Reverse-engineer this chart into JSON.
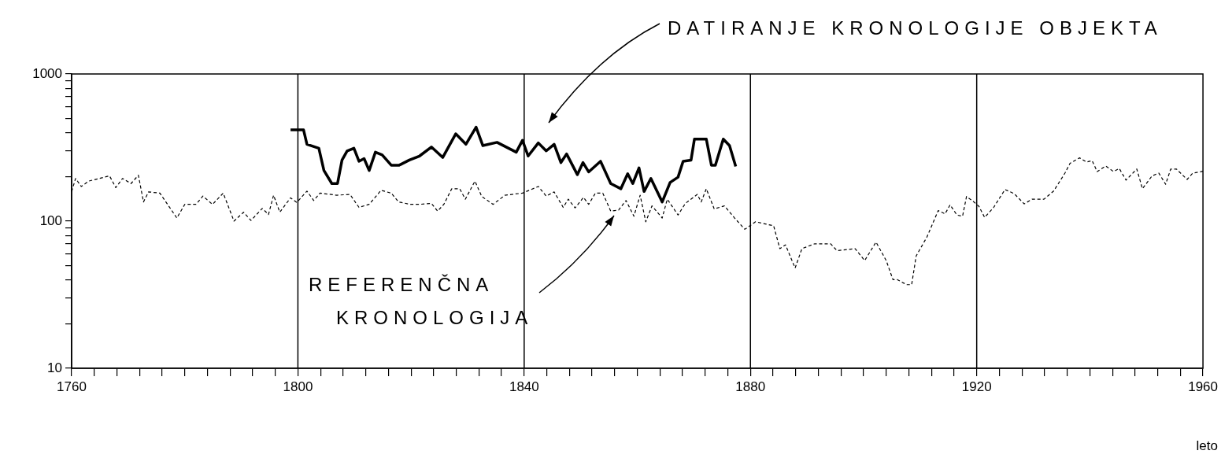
{
  "chart_data": {
    "type": "line",
    "xlabel": "leto",
    "log": true,
    "xlim": [
      1760,
      1960
    ],
    "ylim": [
      10,
      1000
    ],
    "xticks": [
      1760,
      {
        "value": 1764,
        "label": null
      },
      {
        "value": 1768,
        "label": null
      },
      {
        "value": 1772,
        "label": null
      },
      {
        "value": 1776,
        "label": null
      },
      {
        "value": 1780,
        "label": null
      },
      {
        "value": 1784,
        "label": null
      },
      {
        "value": 1788,
        "label": null
      },
      {
        "value": 1792,
        "label": null
      },
      {
        "value": 1796,
        "label": null
      },
      1800,
      {
        "value": 1804,
        "label": null
      },
      {
        "value": 1808,
        "label": null
      },
      {
        "value": 1812,
        "label": null
      },
      {
        "value": 1816,
        "label": null
      },
      {
        "value": 1820,
        "label": null
      },
      {
        "value": 1824,
        "label": null
      },
      {
        "value": 1828,
        "label": null
      },
      {
        "value": 1832,
        "label": null
      },
      {
        "value": 1836,
        "label": null
      },
      1840,
      {
        "value": 1844,
        "label": null
      },
      {
        "value": 1848,
        "label": null
      },
      {
        "value": 1852,
        "label": null
      },
      {
        "value": 1856,
        "label": null
      },
      {
        "value": 1860,
        "label": null
      },
      {
        "value": 1864,
        "label": null
      },
      {
        "value": 1868,
        "label": null
      },
      {
        "value": 1872,
        "label": null
      },
      {
        "value": 1876,
        "label": null
      },
      1880,
      {
        "value": 1884,
        "label": null
      },
      {
        "value": 1888,
        "label": null
      },
      {
        "value": 1892,
        "label": null
      },
      {
        "value": 1896,
        "label": null
      },
      {
        "value": 1900,
        "label": null
      },
      {
        "value": 1904,
        "label": null
      },
      {
        "value": 1908,
        "label": null
      },
      {
        "value": 1912,
        "label": null
      },
      {
        "value": 1916,
        "label": null
      },
      1920,
      {
        "value": 1924,
        "label": null
      },
      {
        "value": 1928,
        "label": null
      },
      {
        "value": 1932,
        "label": null
      },
      {
        "value": 1936,
        "label": null
      },
      {
        "value": 1940,
        "label": null
      },
      {
        "value": 1944,
        "label": null
      },
      {
        "value": 1948,
        "label": null
      },
      {
        "value": 1952,
        "label": null
      },
      {
        "value": 1956,
        "label": null
      },
      1960
    ],
    "yticks": [
      10,
      {
        "value": 20,
        "label": null
      },
      {
        "value": 30,
        "label": null
      },
      {
        "value": 40,
        "label": null
      },
      {
        "value": 50,
        "label": null
      },
      {
        "value": 60,
        "label": null
      },
      {
        "value": 70,
        "label": null
      },
      {
        "value": 80,
        "label": null
      },
      {
        "value": 90,
        "label": null
      },
      100,
      {
        "value": 200,
        "label": null
      },
      {
        "value": 300,
        "label": null
      },
      {
        "value": 400,
        "label": null
      },
      {
        "value": 500,
        "label": null
      },
      {
        "value": 600,
        "label": null
      },
      {
        "value": 700,
        "label": null
      },
      {
        "value": 800,
        "label": null
      },
      {
        "value": 900,
        "label": null
      },
      1000
    ],
    "ref_lines": [
      {
        "axis": "x",
        "value": 1800,
        "color": "#000000"
      },
      {
        "axis": "x",
        "value": 1840,
        "color": "#000000"
      },
      {
        "axis": "x",
        "value": 1880,
        "color": "#000000"
      },
      {
        "axis": "x",
        "value": 1920,
        "color": "#000000"
      }
    ],
    "annotations": [
      "DATIRANJE KRONOLOGIJE OBJEKTA",
      "REFERENČNA KRONOLOGIJA"
    ],
    "series": [
      {
        "color": "#000000",
        "line_style": "dashed",
        "x": [
          1760,
          1760.7,
          1761.7,
          1763,
          1766.7,
          1767.8,
          1769,
          1770.5,
          1771.8,
          1772.7,
          1773.6,
          1775.6,
          1778.6,
          1780,
          1782,
          1783.2,
          1784.9,
          1786.8,
          1788.7,
          1790.4,
          1791.7,
          1793.7,
          1794.8,
          1795.7,
          1796.8,
          1798.7,
          1799.8,
          1801.6,
          1802.8,
          1803.9,
          1806.9,
          1809.2,
          1810.8,
          1812.6,
          1814.7,
          1816.5,
          1817.8,
          1819.9,
          1821.5,
          1823.6,
          1824.7,
          1825.8,
          1827.2,
          1828.6,
          1829.6,
          1831.3,
          1832.5,
          1834.5,
          1836.6,
          1839.7,
          1842.5,
          1843.9,
          1845.3,
          1846.9,
          1847.8,
          1849,
          1850.5,
          1851.4,
          1852.6,
          1853.9,
          1855.3,
          1856.7,
          1858,
          1859.4,
          1860.5,
          1861.5,
          1862.6,
          1864.4,
          1865.3,
          1867.2,
          1868.5,
          1870.6,
          1871.3,
          1872.2,
          1873.6,
          1875.4,
          1877.2,
          1879,
          1880.9,
          1884.1,
          1885.2,
          1886.2,
          1887.9,
          1889.1,
          1891.3,
          1894.2,
          1895.3,
          1898.5,
          1900.2,
          1902.2,
          1904,
          1905.2,
          1906,
          1907.6,
          1908.5,
          1909.3,
          1911.2,
          1913.2,
          1914.4,
          1915.3,
          1916.5,
          1917.5,
          1918.2,
          1919.3,
          1920.4,
          1921.4,
          1923,
          1925,
          1926.6,
          1928.4,
          1929.8,
          1931.9,
          1933.6,
          1935.6,
          1936.5,
          1938.2,
          1939.4,
          1940.4,
          1941.3,
          1942.8,
          1944.2,
          1945.2,
          1946.4,
          1948.3,
          1949.3,
          1951,
          1952.2,
          1953.4,
          1954.3,
          1955.3,
          1957.2,
          1958.2,
          1960
        ],
        "values": [
          159,
          195,
          172,
          187,
          203,
          169,
          195,
          180,
          205,
          135,
          158,
          155,
          105,
          130,
          130,
          148,
          130,
          155,
          100,
          115,
          101,
          122,
          111,
          150,
          115,
          144,
          134,
          160,
          138,
          155,
          150,
          152,
          124,
          130,
          162,
          155,
          135,
          130,
          130,
          132,
          117,
          130,
          166,
          166,
          141,
          187,
          147,
          130,
          150,
          155,
          172,
          148,
          158,
          124,
          141,
          123,
          145,
          130,
          155,
          155,
          117,
          119,
          138,
          108,
          150,
          99,
          127,
          105,
          141,
          110,
          132,
          152,
          135,
          166,
          121,
          127,
          105,
          88,
          99,
          93,
          65,
          69,
          48,
          65,
          70,
          70,
          63,
          65,
          54,
          72,
          54,
          40,
          40,
          37,
          37,
          58,
          78,
          118,
          112,
          129,
          110,
          108,
          147,
          137,
          126,
          106,
          124,
          164,
          154,
          131,
          141,
          141,
          160,
          212,
          247,
          269,
          252,
          258,
          217,
          237,
          217,
          228,
          190,
          226,
          166,
          203,
          212,
          178,
          226,
          226,
          192,
          212,
          218
        ]
      },
      {
        "color": "#000000",
        "line_style": "solid",
        "x": [
          1798.7,
          1801,
          1801.6,
          1803.7,
          1804.6,
          1806,
          1807,
          1807.8,
          1808.7,
          1809.9,
          1810.8,
          1811.7,
          1812.6,
          1813.7,
          1814.9,
          1816.5,
          1817.9,
          1819.7,
          1821.5,
          1823.6,
          1825.6,
          1827.9,
          1829.7,
          1831.5,
          1832.7,
          1835.2,
          1838.6,
          1839.7,
          1840.7,
          1842.5,
          1843.9,
          1845.3,
          1846.5,
          1847.5,
          1849.4,
          1850.4,
          1851.4,
          1853.5,
          1855.3,
          1857.1,
          1858.3,
          1859.2,
          1860.3,
          1861.2,
          1862.4,
          1864.4,
          1865.8,
          1867.2,
          1868.1,
          1869.5,
          1870.1,
          1872.2,
          1873.1,
          1873.8,
          1875.2,
          1876.3,
          1877.4
        ],
        "values": [
          417,
          417,
          333,
          313,
          221,
          180,
          180,
          260,
          300,
          313,
          255,
          266,
          221,
          294,
          282,
          240,
          240,
          260,
          277,
          319,
          271,
          392,
          333,
          435,
          326,
          343,
          294,
          354,
          277,
          340,
          300,
          333,
          250,
          286,
          207,
          250,
          216,
          255,
          180,
          166,
          210,
          180,
          230,
          159,
          195,
          135,
          183,
          199,
          255,
          260,
          361,
          361,
          240,
          240,
          361,
          326,
          235
        ]
      }
    ]
  }
}
